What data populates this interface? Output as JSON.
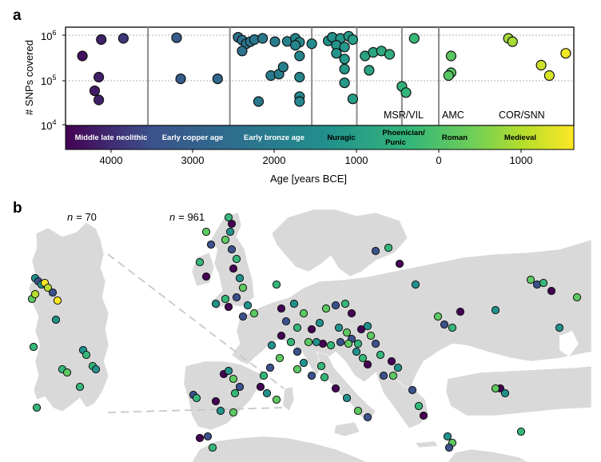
{
  "panel_a": {
    "letter": "a",
    "ylabel": "# SNPs covered",
    "xlabel": "Age [years BCE]",
    "y_ticks": [
      {
        "base": "10",
        "exp": "4",
        "value": 10000
      },
      {
        "base": "10",
        "exp": "5",
        "value": 100000
      },
      {
        "base": "10",
        "exp": "6",
        "value": 1000000
      }
    ],
    "x_ticks": [
      "4000",
      "3000",
      "2000",
      "1000",
      "0",
      "1000"
    ],
    "periods": [
      {
        "label": "Middle late neolithic"
      },
      {
        "label": "Early copper age"
      },
      {
        "label": "Early bronze age"
      },
      {
        "label": "Nuragic"
      },
      {
        "label": "Phoenician/",
        "label2": "Punic"
      },
      {
        "label": "Roman"
      },
      {
        "label": "Medieval"
      }
    ],
    "groups": [
      "MSR/VIL",
      "AMC",
      "COR/SNN"
    ]
  },
  "panel_b": {
    "letter": "b",
    "n_prefix": "n",
    "sardinia_n": "= 70",
    "europe_n": "= 961"
  },
  "chart_data": {
    "type": "scatter",
    "title": "",
    "xlabel": "Age [years BCE]",
    "ylabel": "# SNPs covered",
    "x_range": [
      4600,
      -1600
    ],
    "y_range_log10": [
      4,
      6.2
    ],
    "colormap": [
      "#440154",
      "#3b528b",
      "#21918c",
      "#35b779",
      "#5ec962",
      "#b5de2b",
      "#fde725"
    ],
    "period_boundaries": [
      4600,
      3550,
      2550,
      1550,
      1000,
      450,
      0,
      -1600
    ],
    "points": [
      {
        "x": 4350,
        "y": 350000
      },
      {
        "x": 4120,
        "y": 800000
      },
      {
        "x": 3850,
        "y": 850000
      },
      {
        "x": 4150,
        "y": 120000
      },
      {
        "x": 4200,
        "y": 60000
      },
      {
        "x": 4150,
        "y": 38000
      },
      {
        "x": 3200,
        "y": 880000
      },
      {
        "x": 3150,
        "y": 110000
      },
      {
        "x": 2700,
        "y": 110000
      },
      {
        "x": 2450,
        "y": 900000
      },
      {
        "x": 2400,
        "y": 780000
      },
      {
        "x": 2350,
        "y": 650000
      },
      {
        "x": 2300,
        "y": 720000
      },
      {
        "x": 2250,
        "y": 800000
      },
      {
        "x": 2150,
        "y": 850000
      },
      {
        "x": 2000,
        "y": 720000
      },
      {
        "x": 1850,
        "y": 730000
      },
      {
        "x": 1750,
        "y": 850000
      },
      {
        "x": 1700,
        "y": 700000
      },
      {
        "x": 2400,
        "y": 450000
      },
      {
        "x": 2200,
        "y": 35000
      },
      {
        "x": 2050,
        "y": 130000
      },
      {
        "x": 1950,
        "y": 140000
      },
      {
        "x": 1900,
        "y": 200000
      },
      {
        "x": 1750,
        "y": 600000
      },
      {
        "x": 1700,
        "y": 350000
      },
      {
        "x": 1700,
        "y": 120000
      },
      {
        "x": 1700,
        "y": 45000
      },
      {
        "x": 1700,
        "y": 35000
      },
      {
        "x": 1550,
        "y": 650000
      },
      {
        "x": 1350,
        "y": 750000
      },
      {
        "x": 1300,
        "y": 900000
      },
      {
        "x": 1200,
        "y": 850000
      },
      {
        "x": 1100,
        "y": 950000
      },
      {
        "x": 1250,
        "y": 600000
      },
      {
        "x": 1150,
        "y": 550000
      },
      {
        "x": 1250,
        "y": 400000
      },
      {
        "x": 1150,
        "y": 300000
      },
      {
        "x": 1150,
        "y": 180000
      },
      {
        "x": 1150,
        "y": 90000
      },
      {
        "x": 1050,
        "y": 40000
      },
      {
        "x": 1050,
        "y": 800000
      },
      {
        "x": 900,
        "y": 350000
      },
      {
        "x": 800,
        "y": 420000
      },
      {
        "x": 700,
        "y": 450000
      },
      {
        "x": 600,
        "y": 380000
      },
      {
        "x": 300,
        "y": 850000
      },
      {
        "x": 850,
        "y": 170000
      },
      {
        "x": 450,
        "y": 75000
      },
      {
        "x": 400,
        "y": 55000
      },
      {
        "x": -150,
        "y": 350000
      },
      {
        "x": -150,
        "y": 150000
      },
      {
        "x": -120,
        "y": 130000
      },
      {
        "x": -850,
        "y": 850000
      },
      {
        "x": -900,
        "y": 720000
      },
      {
        "x": -1250,
        "y": 220000
      },
      {
        "x": -1350,
        "y": 130000
      },
      {
        "x": -1550,
        "y": 400000
      }
    ]
  }
}
